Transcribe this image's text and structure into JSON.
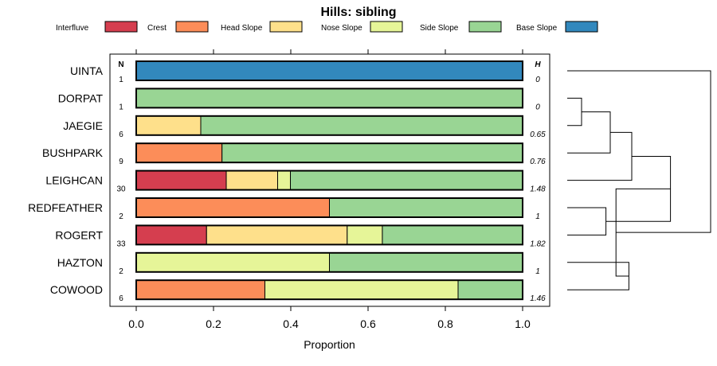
{
  "chart_data": {
    "type": "bar",
    "orientation": "horizontal",
    "stacked": true,
    "title": "Hills: sibling",
    "xlabel": "Proportion",
    "ylabel": "",
    "xlim": [
      0,
      1
    ],
    "x_ticks": [
      "0.0",
      "0.2",
      "0.4",
      "0.6",
      "0.8",
      "1.0"
    ],
    "legend_position": "top",
    "n_header": "N",
    "h_header": "H",
    "legend": [
      {
        "name": "Interfluve",
        "color": "#D53E4F"
      },
      {
        "name": "Crest",
        "color": "#FC8D59"
      },
      {
        "name": "Head Slope",
        "color": "#FEE08B"
      },
      {
        "name": "Nose Slope",
        "color": "#E6F598"
      },
      {
        "name": "Side Slope",
        "color": "#99D594"
      },
      {
        "name": "Base Slope",
        "color": "#3288BD"
      }
    ],
    "rows": [
      {
        "label": "UINTA",
        "n": "1",
        "h": "0",
        "values": [
          0,
          0,
          0,
          0,
          0,
          1
        ]
      },
      {
        "label": "DORPAT",
        "n": "1",
        "h": "0",
        "values": [
          0,
          0,
          0,
          0,
          1,
          0
        ]
      },
      {
        "label": "JAEGIE",
        "n": "6",
        "h": "0.65",
        "values": [
          0,
          0,
          0.167,
          0,
          0.833,
          0
        ]
      },
      {
        "label": "BUSHPARK",
        "n": "9",
        "h": "0.76",
        "values": [
          0,
          0.222,
          0,
          0,
          0.778,
          0
        ]
      },
      {
        "label": "LEIGHCAN",
        "n": "30",
        "h": "1.48",
        "values": [
          0.233,
          0,
          0.133,
          0.033,
          0.6,
          0
        ]
      },
      {
        "label": "REDFEATHER",
        "n": "2",
        "h": "1",
        "values": [
          0,
          0.5,
          0,
          0,
          0.5,
          0
        ]
      },
      {
        "label": "ROGERT",
        "n": "33",
        "h": "1.82",
        "values": [
          0.182,
          0,
          0.364,
          0.091,
          0.364,
          0
        ]
      },
      {
        "label": "HAZTON",
        "n": "2",
        "h": "1",
        "values": [
          0,
          0,
          0,
          0.5,
          0.5,
          0
        ]
      },
      {
        "label": "COWOOD",
        "n": "6",
        "h": "1.46",
        "values": [
          0,
          0.333,
          0,
          0.5,
          0.167,
          0
        ]
      }
    ],
    "dendrogram_merges": [
      {
        "a": 1,
        "b": 2,
        "height": 0.1
      },
      {
        "a": -1,
        "b": 3,
        "height": 0.3
      },
      {
        "a": 5,
        "b": 6,
        "height": 0.27
      },
      {
        "a": 7,
        "b": 8,
        "height": 0.43
      },
      {
        "a": -2,
        "b": 4,
        "height": 0.45
      },
      {
        "a": -5,
        "b": -3,
        "height": 0.72
      },
      {
        "a": -6,
        "b": -4,
        "height": 0.34
      },
      {
        "a": 0,
        "b": -7,
        "height": 1.0
      }
    ]
  }
}
